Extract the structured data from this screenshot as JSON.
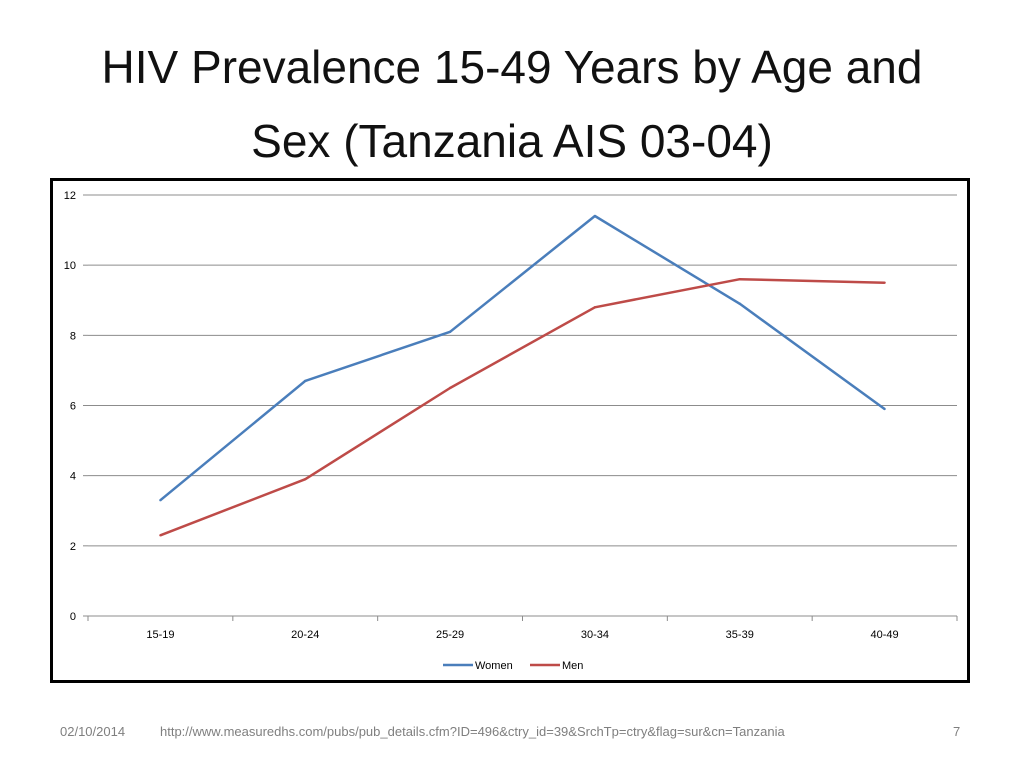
{
  "slide": {
    "title_line1": "HIV Prevalence 15-49 Years by Age and",
    "title_line2": "Sex (Tanzania AIS 03-04)"
  },
  "footer": {
    "date": "02/10/2014",
    "source": "http://www.measuredhs.com/pubs/pub_details.cfm?ID=496&ctry_id=39&SrchTp=ctry&flag=sur&cn=Tanzania",
    "page_number": "7"
  },
  "chart_data": {
    "type": "line",
    "categories": [
      "15-19",
      "20-24",
      "25-29",
      "30-34",
      "35-39",
      "40-49"
    ],
    "series": [
      {
        "name": "Women",
        "color": "#4a7ebb",
        "values": [
          3.3,
          6.7,
          8.1,
          11.4,
          8.9,
          5.9
        ]
      },
      {
        "name": "Men",
        "color": "#be4b48",
        "values": [
          2.3,
          3.9,
          6.5,
          8.8,
          9.6,
          9.5
        ]
      }
    ],
    "yticks": [
      "0",
      "2",
      "4",
      "6",
      "8",
      "10",
      "12"
    ],
    "ylim": [
      0,
      12
    ],
    "grid": true,
    "legend_position": "bottom"
  }
}
